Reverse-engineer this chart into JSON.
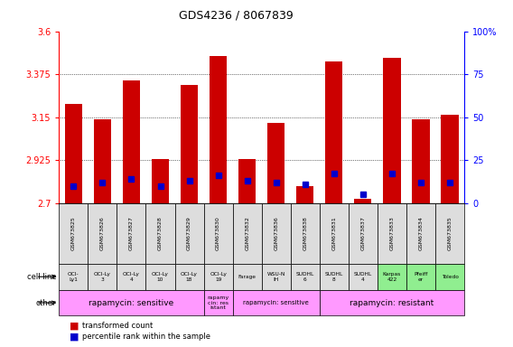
{
  "title": "GDS4236 / 8067839",
  "samples": [
    "GSM673825",
    "GSM673826",
    "GSM673827",
    "GSM673828",
    "GSM673829",
    "GSM673830",
    "GSM673832",
    "GSM673836",
    "GSM673838",
    "GSM673831",
    "GSM673837",
    "GSM673833",
    "GSM673834",
    "GSM673835"
  ],
  "bar_values": [
    3.22,
    3.14,
    3.34,
    2.93,
    3.32,
    3.47,
    2.93,
    3.12,
    2.79,
    3.44,
    2.72,
    3.46,
    3.14,
    3.16
  ],
  "blue_values": [
    10,
    12,
    14,
    10,
    13,
    16,
    13,
    12,
    11,
    17,
    5,
    17,
    12,
    12
  ],
  "ymin": 2.7,
  "ymax": 3.6,
  "yticks": [
    2.7,
    2.925,
    3.15,
    3.375,
    3.6
  ],
  "ytick_labels": [
    "2.7",
    "2.925",
    "3.15",
    "3.375",
    "3.6"
  ],
  "right_yticks": [
    0,
    25,
    50,
    75,
    100
  ],
  "right_ytick_labels": [
    "0",
    "25",
    "50",
    "75",
    "100%"
  ],
  "bar_color": "#cc0000",
  "blue_color": "#0000cc",
  "cell_lines": [
    "OCI-\nLy1",
    "OCI-Ly\n3",
    "OCI-Ly\n4",
    "OCI-Ly\n10",
    "OCI-Ly\n18",
    "OCI-Ly\n19",
    "Farage",
    "WSU-N\nIH",
    "SUDHL\n6",
    "SUDHL\n8",
    "SUDHL\n4",
    "Karpas\n422",
    "Pfeiff\ner",
    "Toledo"
  ],
  "cell_line_colors": [
    "#dddddd",
    "#dddddd",
    "#dddddd",
    "#dddddd",
    "#dddddd",
    "#dddddd",
    "#dddddd",
    "#dddddd",
    "#dddddd",
    "#dddddd",
    "#dddddd",
    "#90ee90",
    "#90ee90",
    "#90ee90"
  ],
  "other_groups": [
    {
      "label": "rapamycin: sensitive",
      "cols": [
        0,
        1,
        2,
        3,
        4
      ],
      "color": "#ff99ff",
      "fontsize": 6.5
    },
    {
      "label": "rapamy\ncin: res\nistant",
      "cols": [
        5
      ],
      "color": "#ff99ff",
      "fontsize": 4.5
    },
    {
      "label": "rapamycin: sensitive",
      "cols": [
        6,
        7,
        8
      ],
      "color": "#ff99ff",
      "fontsize": 5.0
    },
    {
      "label": "rapamycin: resistant",
      "cols": [
        9,
        10,
        11,
        12,
        13
      ],
      "color": "#ff99ff",
      "fontsize": 6.5
    }
  ],
  "legend_items": [
    {
      "color": "#cc0000",
      "label": "transformed count"
    },
    {
      "color": "#0000cc",
      "label": "percentile rank within the sample"
    }
  ]
}
